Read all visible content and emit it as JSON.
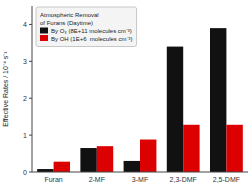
{
  "chart_data": {
    "type": "bar",
    "categories": [
      "Furan",
      "2-MF",
      "3-MF",
      "2,3-DMF",
      "2,5-DMF"
    ],
    "series": [
      {
        "name": "By O₃ (8E+11 molecules cm⁻³)",
        "color": "#111111",
        "values": [
          0.08,
          0.65,
          0.3,
          3.4,
          3.9
        ]
      },
      {
        "name": "By OH (1E+6  molecules cm⁻³)",
        "color": "#dd0000",
        "values": [
          0.28,
          0.7,
          0.88,
          1.28,
          1.28
        ]
      }
    ],
    "ylabel": "Effective Rates / 10⁻⁴ s⁻¹",
    "ylim": [
      0,
      4.5
    ],
    "yticks": [
      0,
      1,
      2,
      3,
      4
    ],
    "legend_title": "Atmospheric Removal\nof Furans (Daytime)",
    "legend": "upper left",
    "grid": false
  }
}
